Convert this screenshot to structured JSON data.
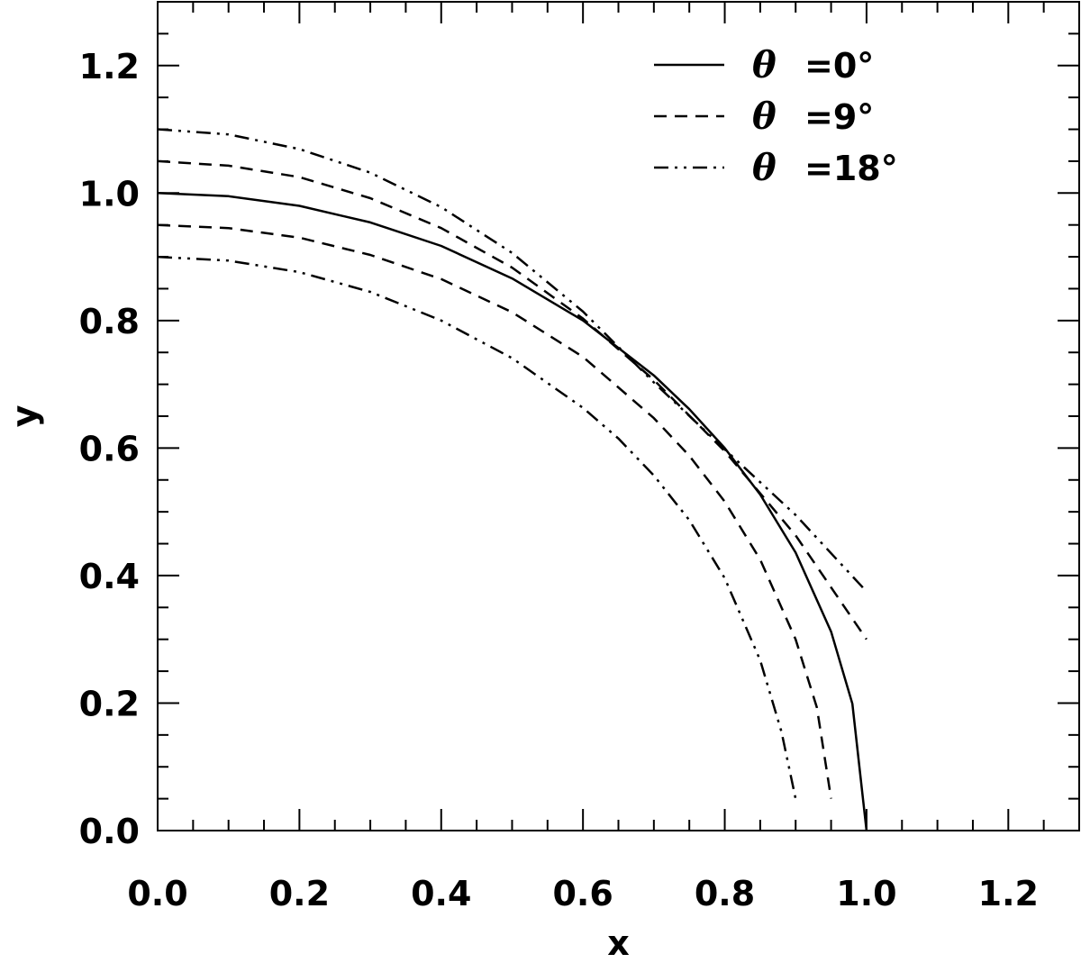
{
  "chart_data": {
    "type": "line",
    "title": "",
    "xlabel": "x",
    "ylabel": "y",
    "xlim": [
      0,
      1.3
    ],
    "ylim": [
      0,
      1.3
    ],
    "xticks": [
      "0.0",
      "0.2",
      "0.4",
      "0.6",
      "0.8",
      "1.0",
      "1.2"
    ],
    "yticks": [
      "0.0",
      "0.2",
      "0.4",
      "0.6",
      "0.8",
      "1.0",
      "1.2"
    ],
    "grid": false,
    "legend_position": "top-right",
    "series": [
      {
        "name": "θ =0°",
        "legend_symbol": "θ",
        "legend_value": "=0°",
        "style": "solid",
        "x": [
          0,
          0.1,
          0.2,
          0.3,
          0.4,
          0.5,
          0.6,
          0.7,
          0.75,
          0.8,
          0.85,
          0.9,
          0.95,
          0.98,
          1.0
        ],
        "y": [
          1.0,
          0.995,
          0.98,
          0.954,
          0.917,
          0.866,
          0.8,
          0.714,
          0.661,
          0.6,
          0.527,
          0.436,
          0.312,
          0.199,
          0.0
        ]
      },
      {
        "name": "θ =9° (upper)",
        "style": "dashed",
        "x": [
          0,
          0.1,
          0.2,
          0.3,
          0.4,
          0.5,
          0.6,
          0.7,
          0.8,
          0.9,
          1.0
        ],
        "y": [
          1.05,
          1.043,
          1.025,
          0.992,
          0.945,
          0.883,
          0.803,
          0.707,
          0.595,
          0.463,
          0.3
        ]
      },
      {
        "name": "θ =9° (lower)",
        "legend_symbol": "θ",
        "legend_value": "=9°",
        "style": "dashed",
        "x": [
          0,
          0.1,
          0.2,
          0.3,
          0.4,
          0.5,
          0.6,
          0.7,
          0.75,
          0.8,
          0.85,
          0.9,
          0.93,
          0.95
        ],
        "y": [
          0.95,
          0.945,
          0.93,
          0.903,
          0.865,
          0.813,
          0.743,
          0.647,
          0.588,
          0.516,
          0.425,
          0.3,
          0.193,
          0.05
        ]
      },
      {
        "name": "θ =18° (upper)",
        "style": "dash-dot-dot",
        "x": [
          0,
          0.1,
          0.2,
          0.3,
          0.4,
          0.5,
          0.6,
          0.7,
          0.8,
          0.9,
          1.0
        ],
        "y": [
          1.1,
          1.092,
          1.069,
          1.032,
          0.978,
          0.906,
          0.814,
          0.703,
          0.598,
          0.495,
          0.375
        ]
      },
      {
        "name": "θ =18° (lower)",
        "legend_symbol": "θ",
        "legend_value": "=18°",
        "style": "dash-dot-dot",
        "x": [
          0,
          0.1,
          0.2,
          0.3,
          0.4,
          0.5,
          0.6,
          0.65,
          0.7,
          0.75,
          0.8,
          0.85,
          0.88,
          0.9
        ],
        "y": [
          0.9,
          0.894,
          0.876,
          0.845,
          0.8,
          0.741,
          0.663,
          0.615,
          0.557,
          0.487,
          0.396,
          0.267,
          0.155,
          0.05
        ]
      }
    ]
  }
}
